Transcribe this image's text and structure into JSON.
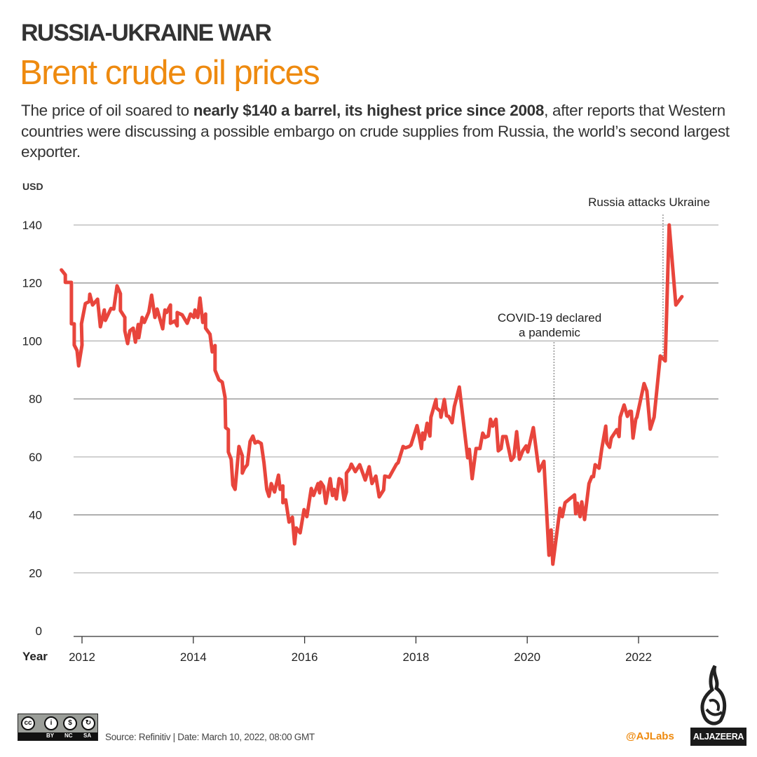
{
  "header": {
    "kicker": "RUSSIA-UKRAINE WAR",
    "title": "Brent crude oil prices",
    "description": {
      "before": "The price of oil soared to ",
      "bold": "nearly $140 a barrel, its highest price since 2008",
      "after": ", after reports that Western countries were discussing a possible embargo on crude supplies from Russia, the world’s second  largest exporter."
    }
  },
  "chart_data": {
    "type": "line",
    "title": "Brent crude oil prices",
    "xlabel": "Year",
    "ylabel": "USD",
    "xlim": [
      2011.6,
      2023.4
    ],
    "ylim": [
      0,
      140
    ],
    "grid": true,
    "x_ticks": [
      2012,
      2014,
      2016,
      2018,
      2020,
      2022
    ],
    "x_tick_labels": [
      "2012",
      "2014",
      "2016",
      "2018",
      "2020",
      "2022"
    ],
    "y_ticks": [
      0,
      20,
      40,
      60,
      80,
      100,
      120,
      140
    ],
    "y_tick_labels": [
      "0",
      "20",
      "40",
      "60",
      "80",
      "100",
      "120",
      "140"
    ],
    "line_color": "#e8453c",
    "series": [
      {
        "points": [
          [
            2011.63,
            124.5
          ],
          [
            2011.7,
            122.8
          ],
          [
            2011.7,
            120.2
          ],
          [
            2011.81,
            120.2
          ],
          [
            2011.81,
            105.9
          ],
          [
            2011.86,
            105.9
          ],
          [
            2011.86,
            98.6
          ],
          [
            2011.91,
            96.7
          ],
          [
            2011.94,
            91.4
          ],
          [
            2012.0,
            98.6
          ],
          [
            2011.99,
            105.9
          ],
          [
            2012.06,
            112.9
          ],
          [
            2012.13,
            113.6
          ],
          [
            2012.14,
            116.1
          ],
          [
            2012.19,
            112.4
          ],
          [
            2012.28,
            114.4
          ],
          [
            2012.33,
            104.9
          ],
          [
            2012.4,
            110.7
          ],
          [
            2012.42,
            107.1
          ],
          [
            2012.52,
            111.2
          ],
          [
            2012.57,
            111.0
          ],
          [
            2012.63,
            119.0
          ],
          [
            2012.69,
            116.3
          ],
          [
            2012.69,
            110.5
          ],
          [
            2012.77,
            108.1
          ],
          [
            2012.77,
            103.5
          ],
          [
            2012.82,
            99.1
          ],
          [
            2012.86,
            103.5
          ],
          [
            2012.92,
            104.4
          ],
          [
            2012.96,
            99.6
          ],
          [
            2013.01,
            105.7
          ],
          [
            2013.02,
            101.1
          ],
          [
            2013.08,
            108.1
          ],
          [
            2013.12,
            106.4
          ],
          [
            2013.2,
            110.0
          ],
          [
            2013.25,
            115.8
          ],
          [
            2013.31,
            108.1
          ],
          [
            2013.35,
            111.0
          ],
          [
            2013.45,
            104.2
          ],
          [
            2013.49,
            110.7
          ],
          [
            2013.52,
            109.8
          ],
          [
            2013.59,
            112.4
          ],
          [
            2013.59,
            106.1
          ],
          [
            2013.67,
            106.9
          ],
          [
            2013.71,
            105.2
          ],
          [
            2013.71,
            109.8
          ],
          [
            2013.8,
            109.0
          ],
          [
            2013.89,
            106.1
          ],
          [
            2013.95,
            109.3
          ],
          [
            2014.01,
            108.1
          ],
          [
            2014.03,
            110.7
          ],
          [
            2014.08,
            108.1
          ],
          [
            2014.12,
            114.8
          ],
          [
            2014.17,
            106.4
          ],
          [
            2014.22,
            109.3
          ],
          [
            2014.22,
            104.4
          ],
          [
            2014.3,
            102.3
          ],
          [
            2014.34,
            96.2
          ],
          [
            2014.39,
            98.4
          ],
          [
            2014.39,
            89.9
          ],
          [
            2014.46,
            86.6
          ],
          [
            2014.52,
            85.8
          ],
          [
            2014.57,
            80.5
          ],
          [
            2014.58,
            70.1
          ],
          [
            2014.63,
            69.4
          ],
          [
            2014.63,
            61.7
          ],
          [
            2014.68,
            59.2
          ],
          [
            2014.71,
            50.3
          ],
          [
            2014.75,
            48.8
          ],
          [
            2014.82,
            63.6
          ],
          [
            2014.88,
            60.4
          ],
          [
            2014.88,
            54.4
          ],
          [
            2014.92,
            56.1
          ],
          [
            2014.97,
            57.3
          ],
          [
            2015.02,
            65.3
          ],
          [
            2015.07,
            67.2
          ],
          [
            2015.11,
            64.8
          ],
          [
            2015.16,
            65.3
          ],
          [
            2015.22,
            64.6
          ],
          [
            2015.27,
            58.0
          ],
          [
            2015.32,
            48.8
          ],
          [
            2015.36,
            46.4
          ],
          [
            2015.4,
            50.8
          ],
          [
            2015.46,
            47.9
          ],
          [
            2015.48,
            49.6
          ],
          [
            2015.53,
            53.7
          ],
          [
            2015.56,
            48.8
          ],
          [
            2015.61,
            50.0
          ],
          [
            2015.61,
            44.2
          ],
          [
            2015.66,
            45.2
          ],
          [
            2015.72,
            37.5
          ],
          [
            2015.78,
            39.2
          ],
          [
            2015.82,
            30.0
          ],
          [
            2015.85,
            35.5
          ],
          [
            2015.92,
            33.8
          ],
          [
            2015.99,
            41.8
          ],
          [
            2016.04,
            39.4
          ],
          [
            2016.12,
            49.1
          ],
          [
            2016.16,
            46.7
          ],
          [
            2016.24,
            50.8
          ],
          [
            2016.27,
            47.6
          ],
          [
            2016.29,
            51.3
          ],
          [
            2016.34,
            49.8
          ],
          [
            2016.38,
            44.0
          ],
          [
            2016.46,
            52.5
          ],
          [
            2016.5,
            46.7
          ],
          [
            2016.53,
            48.8
          ],
          [
            2016.57,
            45.5
          ],
          [
            2016.62,
            52.5
          ],
          [
            2016.66,
            52.0
          ],
          [
            2016.71,
            45.2
          ],
          [
            2016.75,
            47.9
          ],
          [
            2016.75,
            54.4
          ],
          [
            2016.81,
            55.9
          ],
          [
            2016.84,
            57.5
          ],
          [
            2016.91,
            54.9
          ],
          [
            2016.99,
            57.3
          ],
          [
            2017.09,
            52.0
          ],
          [
            2017.16,
            56.6
          ],
          [
            2017.21,
            50.8
          ],
          [
            2017.28,
            53.4
          ],
          [
            2017.34,
            46.2
          ],
          [
            2017.42,
            48.6
          ],
          [
            2017.44,
            53.4
          ],
          [
            2017.52,
            53.0
          ],
          [
            2017.65,
            57.5
          ],
          [
            2017.68,
            58.0
          ],
          [
            2017.77,
            63.6
          ],
          [
            2017.81,
            63.1
          ],
          [
            2017.88,
            63.6
          ],
          [
            2017.91,
            64.1
          ],
          [
            2018.02,
            70.8
          ],
          [
            2018.06,
            67.0
          ],
          [
            2018.1,
            62.9
          ],
          [
            2018.12,
            68.2
          ],
          [
            2018.15,
            66.0
          ],
          [
            2018.2,
            71.6
          ],
          [
            2018.25,
            67.2
          ],
          [
            2018.27,
            73.7
          ],
          [
            2018.36,
            79.8
          ],
          [
            2018.37,
            76.9
          ],
          [
            2018.44,
            75.7
          ],
          [
            2018.45,
            73.7
          ],
          [
            2018.51,
            79.8
          ],
          [
            2018.55,
            74.2
          ],
          [
            2018.59,
            74.0
          ],
          [
            2018.65,
            71.8
          ],
          [
            2018.69,
            77.4
          ],
          [
            2018.78,
            84.1
          ],
          [
            2018.93,
            59.7
          ],
          [
            2018.96,
            62.6
          ],
          [
            2019.01,
            52.5
          ],
          [
            2019.08,
            62.9
          ],
          [
            2019.15,
            62.9
          ],
          [
            2019.2,
            68.2
          ],
          [
            2019.24,
            66.7
          ],
          [
            2019.3,
            67.2
          ],
          [
            2019.34,
            73.0
          ],
          [
            2019.38,
            70.6
          ],
          [
            2019.44,
            73.0
          ],
          [
            2019.48,
            62.1
          ],
          [
            2019.53,
            62.9
          ],
          [
            2019.56,
            67.0
          ],
          [
            2019.62,
            67.0
          ],
          [
            2019.71,
            58.8
          ],
          [
            2019.76,
            60.0
          ],
          [
            2019.81,
            68.7
          ],
          [
            2019.86,
            59.2
          ],
          [
            2019.92,
            62.1
          ],
          [
            2019.98,
            63.8
          ],
          [
            2020.01,
            61.7
          ],
          [
            2020.11,
            70.1
          ],
          [
            2020.21,
            55.1
          ],
          [
            2020.3,
            58.5
          ],
          [
            2020.39,
            26.1
          ],
          [
            2020.43,
            34.8
          ],
          [
            2020.46,
            23.0
          ],
          [
            2020.59,
            42.3
          ],
          [
            2020.63,
            39.4
          ],
          [
            2020.68,
            44.2
          ],
          [
            2020.85,
            46.9
          ],
          [
            2020.87,
            40.4
          ],
          [
            2020.9,
            44.0
          ],
          [
            2020.95,
            39.4
          ],
          [
            2020.98,
            44.5
          ],
          [
            2021.03,
            38.4
          ],
          [
            2021.11,
            50.8
          ],
          [
            2021.16,
            53.2
          ],
          [
            2021.19,
            53.2
          ],
          [
            2021.22,
            57.3
          ],
          [
            2021.29,
            56.1
          ],
          [
            2021.34,
            62.9
          ],
          [
            2021.41,
            70.6
          ],
          [
            2021.43,
            64.8
          ],
          [
            2021.48,
            63.3
          ],
          [
            2021.51,
            66.5
          ],
          [
            2021.61,
            69.4
          ],
          [
            2021.65,
            67.0
          ],
          [
            2021.67,
            73.7
          ],
          [
            2021.74,
            77.9
          ],
          [
            2021.8,
            74.0
          ],
          [
            2021.84,
            75.7
          ],
          [
            2021.87,
            75.7
          ],
          [
            2021.9,
            66.5
          ],
          [
            2021.95,
            73.0
          ],
          [
            2021.97,
            73.7
          ],
          [
            2022.1,
            85.3
          ],
          [
            2022.15,
            82.7
          ],
          [
            2022.21,
            69.6
          ],
          [
            2022.28,
            73.7
          ],
          [
            2022.39,
            94.8
          ],
          [
            2022.48,
            93.1
          ],
          [
            2022.55,
            140.0
          ],
          [
            2022.67,
            112.4
          ],
          [
            2022.78,
            115.3
          ]
        ]
      }
    ],
    "annotations": [
      {
        "x": 2020.48,
        "lines": [
          "COVID-19 declared",
          "a pandemic"
        ]
      },
      {
        "x": 2022.44,
        "lines": [
          "Russia attacks Ukraine"
        ]
      }
    ]
  },
  "footer": {
    "source": "Source:  Refinitiv  |  Date: March 10, 2022, 08:00 GMT",
    "handle": "@AJLabs",
    "brand": "ALJAZEERA",
    "license": {
      "cc": "cc",
      "by": "BY",
      "nc": "NC",
      "sa": "SA"
    }
  }
}
